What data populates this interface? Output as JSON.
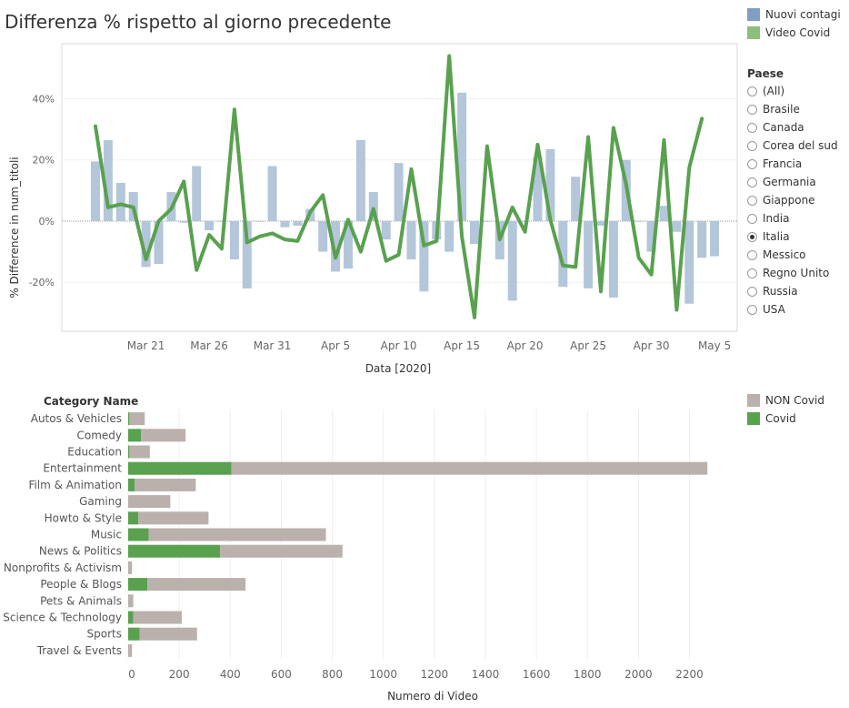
{
  "header": {
    "title": "Differenza % rispetto al giorno precedente"
  },
  "legend_top": [
    {
      "label": "Nuovi contagi",
      "color": "#7f9fc2"
    },
    {
      "label": "Video Covid",
      "color": "#8cbf7e"
    }
  ],
  "filter": {
    "title": "Paese",
    "options": [
      "(All)",
      "Brasile",
      "Canada",
      "Corea del sud",
      "Francia",
      "Germania",
      "Giappone",
      "India",
      "Italia",
      "Messico",
      "Regno Unito",
      "Russia",
      "USA"
    ],
    "selected": "Italia"
  },
  "legend_bottom": [
    {
      "label": "NON Covid",
      "color": "#bab0ac"
    },
    {
      "label": "Covid",
      "color": "#59a14f"
    }
  ],
  "chart_data": [
    {
      "type": "bar+line",
      "ylabel": "% Difference in num_titoli",
      "xlabel": "Data [2020]",
      "x_tick_labels": [
        "Mar 21",
        "Mar 26",
        "Mar 31",
        "Apr 5",
        "Apr 10",
        "Apr 15",
        "Apr 20",
        "Apr 25",
        "Apr 30",
        "May 5"
      ],
      "y_tick_labels": [
        "40%",
        "20%",
        "0%",
        "-20%"
      ],
      "ylim": [
        -0.36,
        0.58
      ],
      "y_ticks": [
        0.4,
        0.2,
        0,
        -0.2
      ],
      "x_start_date": "Mar 17",
      "x_tick_positions": [
        4,
        9,
        14,
        19,
        24,
        29,
        34,
        39,
        44,
        49
      ],
      "bar_series": {
        "name": "Nuovi contagi",
        "values": [
          0.195,
          0.265,
          0.125,
          0.095,
          -0.15,
          -0.14,
          0.095,
          -0.005,
          0.18,
          -0.03,
          0.0,
          -0.125,
          -0.22,
          0.0,
          0.18,
          -0.02,
          -0.015,
          0.04,
          -0.1,
          -0.165,
          -0.155,
          0.265,
          0.095,
          -0.06,
          0.19,
          -0.125,
          -0.23,
          -0.06,
          -0.1,
          0.42,
          -0.075,
          0.0,
          -0.125,
          -0.26,
          0.0,
          0.21,
          0.235,
          -0.215,
          0.145,
          -0.22,
          -0.015,
          -0.25,
          0.2,
          0.0,
          -0.1,
          0.05,
          -0.035,
          -0.27,
          -0.12,
          -0.115
        ]
      },
      "line_series": {
        "name": "Video Covid",
        "values": [
          0.31,
          0.045,
          0.055,
          0.045,
          -0.125,
          0.0,
          0.04,
          0.13,
          -0.16,
          -0.045,
          -0.09,
          0.365,
          -0.07,
          -0.05,
          -0.04,
          -0.06,
          -0.065,
          0.03,
          0.085,
          -0.12,
          0.005,
          -0.1,
          0.04,
          -0.13,
          -0.11,
          0.17,
          -0.08,
          -0.065,
          0.54,
          -0.05,
          -0.315,
          0.245,
          -0.06,
          0.045,
          -0.035,
          0.25,
          0.005,
          -0.145,
          -0.15,
          0.275,
          -0.23,
          0.305,
          0.12,
          -0.12,
          -0.175,
          0.265,
          -0.29,
          0.175,
          0.335
        ]
      }
    },
    {
      "type": "bar",
      "orientation": "horizontal",
      "stacked": true,
      "title": "Category Name",
      "xlabel": "Numero di Video",
      "categories": [
        "Autos & Vehicles",
        "Comedy",
        "Education",
        "Entertainment",
        "Film & Animation",
        "Gaming",
        "Howto & Style",
        "Music",
        "News & Politics",
        "Nonprofits & Activism",
        "People & Blogs",
        "Pets & Animals",
        "Science & Technology",
        "Sports",
        "Travel & Events"
      ],
      "series": [
        {
          "name": "Covid",
          "values": [
            5,
            50,
            5,
            405,
            25,
            0,
            40,
            80,
            360,
            0,
            75,
            0,
            20,
            45,
            0
          ]
        },
        {
          "name": "NON Covid",
          "values": [
            60,
            175,
            80,
            1865,
            240,
            165,
            275,
            695,
            480,
            15,
            385,
            20,
            190,
            225,
            15
          ]
        }
      ],
      "xlim": [
        0,
        2280
      ],
      "x_ticks": [
        0,
        200,
        400,
        600,
        800,
        1000,
        1200,
        1400,
        1600,
        1800,
        2000,
        2200
      ]
    }
  ]
}
